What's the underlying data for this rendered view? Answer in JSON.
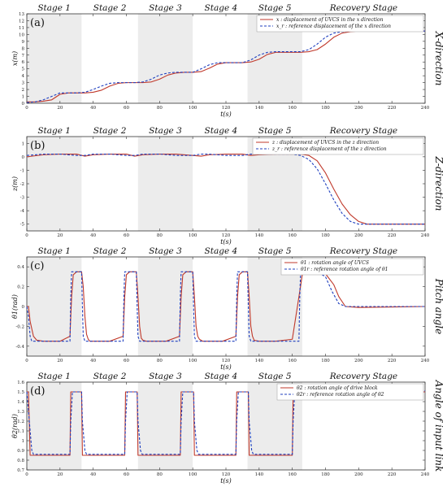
{
  "stage_names": [
    "Stage 1",
    "Stage 2",
    "Stage 3",
    "Stage 4",
    "Stage 5",
    "Recovery Stage"
  ],
  "colors": {
    "actual": "#c0392b",
    "reference": "#1f3fbf",
    "shade": "#ececec",
    "axis": "#333333"
  },
  "chart_data": [
    {
      "type": "line",
      "panel_label": "(a)",
      "side_label": "X-direction",
      "xlabel": "t(s)",
      "ylabel": "x(m)",
      "xlim": [
        0,
        240
      ],
      "ylim": [
        0,
        13
      ],
      "xticks": [
        0,
        20,
        40,
        60,
        80,
        100,
        120,
        140,
        160,
        180,
        200,
        220,
        240
      ],
      "yticks": [
        0,
        1,
        2,
        3,
        4,
        5,
        6,
        7,
        8,
        9,
        10,
        11,
        12,
        13
      ],
      "shaded_stages": [
        [
          0,
          33
        ],
        [
          67,
          100
        ],
        [
          133,
          166
        ]
      ],
      "legend": "top-right",
      "series": [
        {
          "name": "x : displacement of UVCS in the x direction",
          "style": "solid",
          "x": [
            0,
            5,
            10,
            15,
            20,
            25,
            30,
            35,
            40,
            45,
            50,
            55,
            60,
            65,
            70,
            75,
            80,
            85,
            90,
            95,
            100,
            105,
            110,
            115,
            120,
            125,
            130,
            135,
            140,
            145,
            150,
            155,
            160,
            165,
            170,
            175,
            180,
            185,
            190,
            195,
            200,
            205,
            210,
            220,
            230,
            240
          ],
          "y": [
            0.2,
            0.2,
            0.3,
            0.5,
            1.3,
            1.5,
            1.5,
            1.5,
            1.6,
            1.9,
            2.5,
            2.9,
            3.0,
            3.0,
            3.0,
            3.1,
            3.5,
            4.1,
            4.4,
            4.5,
            4.5,
            4.6,
            5.1,
            5.7,
            5.9,
            5.9,
            5.9,
            6.0,
            6.4,
            7.1,
            7.4,
            7.4,
            7.4,
            7.4,
            7.5,
            7.8,
            8.6,
            9.6,
            10.2,
            10.4,
            10.5,
            10.5,
            10.5,
            10.5,
            10.5,
            10.5
          ]
        },
        {
          "name": "x_r : reference displacement of the x direction",
          "style": "dashed",
          "x": [
            0,
            5,
            10,
            15,
            20,
            25,
            30,
            35,
            40,
            45,
            50,
            55,
            60,
            65,
            70,
            75,
            80,
            85,
            90,
            95,
            100,
            105,
            110,
            115,
            120,
            125,
            130,
            135,
            140,
            145,
            150,
            155,
            160,
            165,
            170,
            175,
            180,
            185,
            190,
            195,
            200,
            205,
            210,
            220,
            230,
            240
          ],
          "y": [
            0.1,
            0.2,
            0.5,
            1.0,
            1.5,
            1.5,
            1.5,
            1.6,
            2.0,
            2.5,
            2.9,
            3.0,
            3.0,
            3.0,
            3.1,
            3.5,
            4.1,
            4.4,
            4.5,
            4.5,
            4.5,
            5.0,
            5.6,
            5.9,
            5.9,
            5.9,
            5.9,
            6.3,
            7.0,
            7.4,
            7.5,
            7.5,
            7.5,
            7.5,
            7.8,
            8.6,
            9.6,
            10.2,
            10.4,
            10.5,
            10.5,
            10.5,
            10.5,
            10.5,
            10.5,
            10.5
          ]
        }
      ]
    },
    {
      "type": "line",
      "panel_label": "(b)",
      "side_label": "Z-direction",
      "xlabel": "t(s)",
      "ylabel": "z(m)",
      "xlim": [
        0,
        240
      ],
      "ylim": [
        -5.5,
        1.5
      ],
      "xticks": [
        0,
        20,
        40,
        60,
        80,
        100,
        120,
        140,
        160,
        180,
        200,
        220,
        240
      ],
      "yticks": [
        -5,
        -4,
        -3,
        -2,
        -1,
        0,
        1
      ],
      "shaded_stages": [
        [
          0,
          33
        ],
        [
          67,
          100
        ],
        [
          133,
          166
        ]
      ],
      "legend": "top-right",
      "series": [
        {
          "name": "z : displacement of UVCS in the z direction",
          "style": "solid",
          "x": [
            0,
            10,
            20,
            30,
            35,
            40,
            50,
            60,
            65,
            70,
            80,
            90,
            100,
            105,
            110,
            120,
            130,
            135,
            140,
            150,
            160,
            165,
            170,
            175,
            180,
            185,
            190,
            195,
            200,
            205,
            210,
            220,
            230,
            240
          ],
          "y": [
            0,
            0.15,
            0.2,
            0.2,
            0.05,
            0.15,
            0.2,
            0.2,
            0.05,
            0.15,
            0.2,
            0.2,
            0.1,
            0.05,
            0.15,
            0.2,
            0.2,
            0.1,
            0.15,
            0.2,
            0.2,
            0.2,
            0.1,
            -0.3,
            -1.2,
            -2.4,
            -3.5,
            -4.3,
            -4.8,
            -5.0,
            -5.0,
            -5.0,
            -5.0,
            -5.0
          ]
        },
        {
          "name": "z_r : reference displacement of the z direction",
          "style": "dashed",
          "x": [
            0,
            10,
            20,
            30,
            35,
            40,
            50,
            60,
            65,
            70,
            80,
            90,
            100,
            105,
            110,
            120,
            130,
            135,
            140,
            150,
            160,
            165,
            170,
            175,
            180,
            185,
            190,
            195,
            200,
            205,
            210,
            220,
            230,
            240
          ],
          "y": [
            0.1,
            0.2,
            0.2,
            0.1,
            0.1,
            0.2,
            0.2,
            0.1,
            0.1,
            0.2,
            0.2,
            0.1,
            0.1,
            0.2,
            0.2,
            0.1,
            0.1,
            0.2,
            0.2,
            0.2,
            0.2,
            0.1,
            -0.2,
            -0.9,
            -2.0,
            -3.2,
            -4.2,
            -4.8,
            -5.0,
            -5.0,
            -5.0,
            -5.0,
            -5.0,
            -5.0
          ]
        }
      ]
    },
    {
      "type": "line",
      "panel_label": "(c)",
      "side_label": "Pitch angle",
      "xlabel": "t(s)",
      "ylabel": "θ1(rad)",
      "xlim": [
        0,
        240
      ],
      "ylim": [
        -0.5,
        0.5
      ],
      "xticks": [
        0,
        20,
        40,
        60,
        80,
        100,
        120,
        140,
        160,
        180,
        200,
        220,
        240
      ],
      "yticks": [
        -0.4,
        -0.2,
        0,
        0.2,
        0.4
      ],
      "shaded_stages": [
        [
          0,
          33
        ],
        [
          67,
          100
        ],
        [
          133,
          166
        ]
      ],
      "legend": "top-right",
      "series": [
        {
          "name": "θ1 : rotation angle of UVCS",
          "style": "solid",
          "x": [
            0,
            1,
            2,
            4,
            6,
            10,
            20,
            26,
            27,
            28,
            30,
            33,
            34,
            35,
            36,
            37,
            38,
            40,
            44,
            50,
            58,
            59,
            60,
            62,
            66,
            67,
            68,
            69,
            70,
            72,
            76,
            84,
            92,
            93,
            94,
            96,
            100,
            101,
            102,
            103,
            104,
            106,
            110,
            118,
            126,
            127,
            128,
            130,
            133,
            134,
            135,
            136,
            137,
            140,
            150,
            160,
            164,
            166,
            168,
            170,
            175,
            180,
            185,
            188,
            192,
            200,
            240
          ],
          "y": [
            0,
            0,
            -0.15,
            -0.3,
            -0.34,
            -0.35,
            -0.35,
            -0.3,
            0.1,
            0.32,
            0.35,
            0.35,
            0.2,
            -0.1,
            -0.28,
            -0.33,
            -0.35,
            -0.35,
            -0.35,
            -0.35,
            -0.3,
            0.1,
            0.32,
            0.35,
            0.35,
            0.1,
            -0.2,
            -0.32,
            -0.34,
            -0.35,
            -0.35,
            -0.35,
            -0.3,
            0.1,
            0.32,
            0.35,
            0.35,
            0.1,
            -0.2,
            -0.3,
            -0.33,
            -0.35,
            -0.35,
            -0.35,
            -0.3,
            0.1,
            0.32,
            0.35,
            0.35,
            0.1,
            -0.2,
            -0.3,
            -0.34,
            -0.35,
            -0.35,
            -0.33,
            0.1,
            0.32,
            0.35,
            0.35,
            0.35,
            0.33,
            0.22,
            0.1,
            0.0,
            -0.01,
            0.0
          ]
        },
        {
          "name": "θ1r : reference rotation angle of θ1",
          "style": "dashed",
          "x": [
            0,
            1,
            2,
            3,
            6,
            26,
            26.5,
            27,
            33,
            33.5,
            34,
            35,
            58,
            58.5,
            59,
            66,
            66.5,
            67,
            68,
            92,
            92.5,
            93,
            100,
            100.5,
            101,
            102,
            126,
            126.5,
            127,
            133,
            133.5,
            134,
            135,
            164,
            164.5,
            165,
            175,
            180,
            184,
            188,
            192,
            200,
            240
          ],
          "y": [
            0,
            -0.1,
            -0.3,
            -0.35,
            -0.35,
            -0.35,
            0.1,
            0.35,
            0.35,
            0.0,
            -0.3,
            -0.35,
            -0.35,
            0.1,
            0.35,
            0.35,
            0.0,
            -0.3,
            -0.35,
            -0.35,
            0.1,
            0.35,
            0.35,
            0.0,
            -0.3,
            -0.35,
            -0.35,
            0.1,
            0.35,
            0.35,
            0.0,
            -0.3,
            -0.35,
            -0.35,
            0.1,
            0.35,
            0.35,
            0.3,
            0.15,
            0.03,
            0.0,
            0.0,
            0.0
          ]
        }
      ]
    },
    {
      "type": "line",
      "panel_label": "(d)",
      "side_label": "Angle of input link",
      "xlabel": "t(s)",
      "ylabel": "θ2(rad)",
      "xlim": [
        0,
        240
      ],
      "ylim": [
        0.7,
        1.6
      ],
      "xticks": [
        0,
        20,
        40,
        60,
        80,
        100,
        120,
        140,
        160,
        180,
        200,
        220,
        240
      ],
      "yticks": [
        0.7,
        0.8,
        0.9,
        1.0,
        1.1,
        1.2,
        1.3,
        1.4,
        1.5,
        1.6
      ],
      "shaded_stages": [
        [
          0,
          33
        ],
        [
          67,
          100
        ],
        [
          133,
          166
        ]
      ],
      "legend": "top-right",
      "series": [
        {
          "name": "θ2 : rotation angle of drive block",
          "style": "solid",
          "x": [
            0,
            1,
            2,
            2.5,
            26,
            26.5,
            33,
            33.5,
            59,
            59.5,
            66.5,
            67,
            92.5,
            93,
            100.5,
            101,
            126,
            126.5,
            133.5,
            134,
            160,
            160.5,
            200,
            205,
            215,
            240
          ],
          "y": [
            1.5,
            1.5,
            0.85,
            0.85,
            0.85,
            1.5,
            1.5,
            0.85,
            0.85,
            1.5,
            1.5,
            0.85,
            0.85,
            1.5,
            1.5,
            0.85,
            0.85,
            1.5,
            1.5,
            0.85,
            0.85,
            1.5,
            1.5,
            1.49,
            1.5,
            1.5
          ]
        },
        {
          "name": "θ2r : reference rotation angle of θ2",
          "style": "dashed",
          "x": [
            0,
            1.5,
            3,
            4,
            26,
            26.5,
            27.5,
            33,
            33.5,
            35,
            36,
            59,
            59.5,
            60.5,
            66.5,
            67,
            68.5,
            69.5,
            92.5,
            93,
            94,
            100.5,
            101,
            102.5,
            103.5,
            126,
            126.5,
            127.5,
            133.5,
            134,
            135.5,
            136.5,
            160,
            160.5,
            161.5,
            200,
            205,
            210,
            215,
            240
          ],
          "y": [
            1.5,
            1.2,
            0.9,
            0.86,
            0.86,
            1.2,
            1.5,
            1.5,
            1.2,
            0.9,
            0.86,
            0.86,
            1.2,
            1.5,
            1.5,
            1.2,
            0.9,
            0.86,
            0.86,
            1.2,
            1.5,
            1.5,
            1.2,
            0.9,
            0.86,
            0.86,
            1.2,
            1.5,
            1.5,
            1.2,
            0.9,
            0.86,
            0.86,
            1.2,
            1.51,
            1.51,
            1.48,
            1.47,
            1.5,
            1.51
          ]
        }
      ]
    }
  ]
}
